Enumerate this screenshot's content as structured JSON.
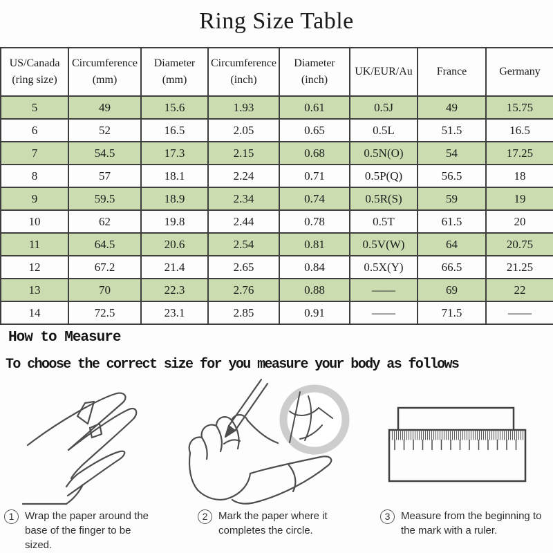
{
  "title": "Ring Size Table",
  "table": {
    "headers": [
      [
        "US/Canada",
        "(ring size)"
      ],
      [
        "Circumference",
        "(mm)"
      ],
      [
        "Diameter",
        "(mm)"
      ],
      [
        "Circumference",
        "(inch)"
      ],
      [
        "Diameter",
        "(inch)"
      ],
      [
        "UK/EUR/Au"
      ],
      [
        "France"
      ],
      [
        "Germany"
      ]
    ],
    "rows": [
      [
        "5",
        "49",
        "15.6",
        "1.93",
        "0.61",
        "0.5J",
        "49",
        "15.75"
      ],
      [
        "6",
        "52",
        "16.5",
        "2.05",
        "0.65",
        "0.5L",
        "51.5",
        "16.5"
      ],
      [
        "7",
        "54.5",
        "17.3",
        "2.15",
        "0.68",
        "0.5N(O)",
        "54",
        "17.25"
      ],
      [
        "8",
        "57",
        "18.1",
        "2.24",
        "0.71",
        "0.5P(Q)",
        "56.5",
        "18"
      ],
      [
        "9",
        "59.5",
        "18.9",
        "2.34",
        "0.74",
        "0.5R(S)",
        "59",
        "19"
      ],
      [
        "10",
        "62",
        "19.8",
        "2.44",
        "0.78",
        "0.5T",
        "61.5",
        "20"
      ],
      [
        "11",
        "64.5",
        "20.6",
        "2.54",
        "0.81",
        "0.5V(W)",
        "64",
        "20.75"
      ],
      [
        "12",
        "67.2",
        "21.4",
        "2.65",
        "0.84",
        "0.5X(Y)",
        "66.5",
        "21.25"
      ],
      [
        "13",
        "70",
        "22.3",
        "2.76",
        "0.88",
        "——",
        "69",
        "22"
      ],
      [
        "14",
        "72.5",
        "23.1",
        "2.85",
        "0.91",
        "——",
        "71.5",
        "——"
      ]
    ]
  },
  "how_to_measure": {
    "heading": "How to Measure",
    "subtitle": "To choose the correct size for you measure your body as follows",
    "steps": [
      {
        "number": "1",
        "text": "Wrap the paper around the base of the finger to be sized."
      },
      {
        "number": "2",
        "text": "Mark the paper where it completes the circle."
      },
      {
        "number": "3",
        "text": "Measure from the beginning to the mark with a ruler."
      }
    ]
  },
  "colors": {
    "row_green": "#cadcb0",
    "table_border": "#3d3d3d",
    "line_art": "#4d4d4d",
    "ring_highlight": "#cdcdcd",
    "text": "#1b1b1b"
  }
}
